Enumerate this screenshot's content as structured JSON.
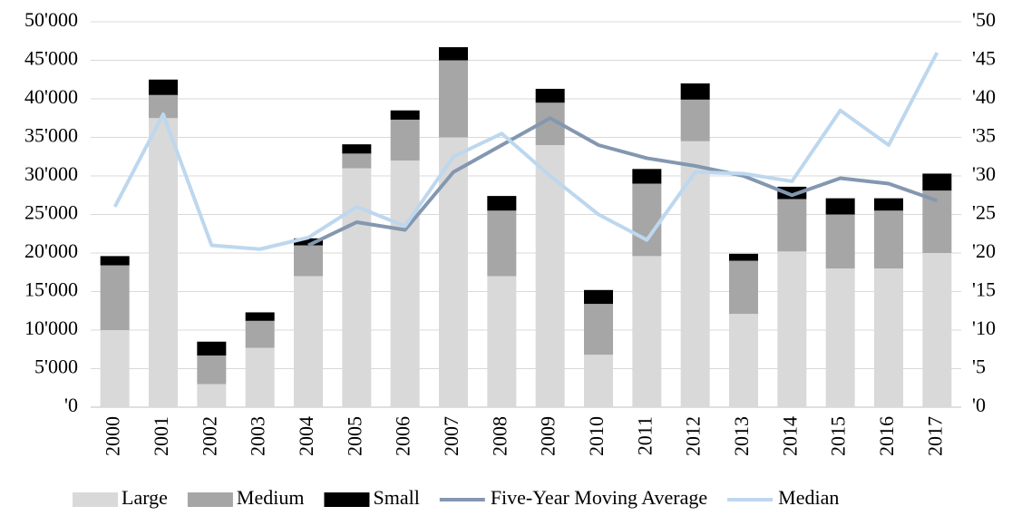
{
  "chart_data": {
    "type": "bar",
    "stacked": true,
    "categories": [
      "2000",
      "2001",
      "2002",
      "2003",
      "2004",
      "2005",
      "2006",
      "2007",
      "2008",
      "2009",
      "2010",
      "2011",
      "2012",
      "2013",
      "2014",
      "2015",
      "2016",
      "2017"
    ],
    "series": [
      {
        "name": "Large",
        "type": "bar",
        "color": "#d9d9d9",
        "values": [
          10000,
          37500,
          3000,
          7700,
          17000,
          31000,
          32000,
          35000,
          17000,
          34000,
          6800,
          19600,
          34500,
          12100,
          20200,
          18000,
          18000,
          20000
        ]
      },
      {
        "name": "Medium",
        "type": "bar",
        "color": "#a6a6a6",
        "values": [
          8400,
          3000,
          3700,
          3500,
          4000,
          1900,
          5300,
          10000,
          8500,
          5500,
          6600,
          9400,
          5400,
          6900,
          6800,
          7000,
          7500,
          8100
        ]
      },
      {
        "name": "Small",
        "type": "bar",
        "color": "#000000",
        "values": [
          1200,
          2000,
          1800,
          1100,
          900,
          1200,
          1200,
          1700,
          1900,
          1800,
          1800,
          1900,
          2100,
          900,
          1600,
          2100,
          1600,
          2200
        ]
      },
      {
        "name": "Five-Year Moving Average",
        "type": "line",
        "axis": "y2",
        "color": "#8497b0",
        "values": [
          null,
          null,
          null,
          null,
          21,
          24,
          23,
          30.5,
          34,
          37.5,
          34,
          32.3,
          31.3,
          30,
          27.5,
          29.7,
          29,
          26.8
        ]
      },
      {
        "name": "Median",
        "type": "line",
        "axis": "y2",
        "color": "#bdd7ee",
        "values": [
          26,
          38,
          21,
          20.5,
          22,
          26,
          23.5,
          32.5,
          35.5,
          30,
          25,
          21.7,
          30.5,
          30.3,
          29.3,
          38.5,
          34,
          46
        ]
      }
    ],
    "ylim": [
      0,
      50000
    ],
    "yticks": [
      {
        "value": 0,
        "label": "'0"
      },
      {
        "value": 5000,
        "label": "5'000"
      },
      {
        "value": 10000,
        "label": "10'000"
      },
      {
        "value": 15000,
        "label": "15'000"
      },
      {
        "value": 20000,
        "label": "20'000"
      },
      {
        "value": 25000,
        "label": "25'000"
      },
      {
        "value": 30000,
        "label": "30'000"
      },
      {
        "value": 35000,
        "label": "35'000"
      },
      {
        "value": 40000,
        "label": "40'000"
      },
      {
        "value": 45000,
        "label": "45'000"
      },
      {
        "value": 50000,
        "label": "50'000"
      }
    ],
    "y2lim": [
      0,
      50
    ],
    "y2ticks": [
      {
        "value": 0,
        "label": "'0"
      },
      {
        "value": 5,
        "label": "'5"
      },
      {
        "value": 10,
        "label": "'10"
      },
      {
        "value": 15,
        "label": "'15"
      },
      {
        "value": 20,
        "label": "'20"
      },
      {
        "value": 25,
        "label": "'25"
      },
      {
        "value": 30,
        "label": "'30"
      },
      {
        "value": 35,
        "label": "'35"
      },
      {
        "value": 40,
        "label": "'40"
      },
      {
        "value": 45,
        "label": "'45"
      },
      {
        "value": 50,
        "label": "'50"
      }
    ],
    "grid": true,
    "legend": "bottom"
  }
}
